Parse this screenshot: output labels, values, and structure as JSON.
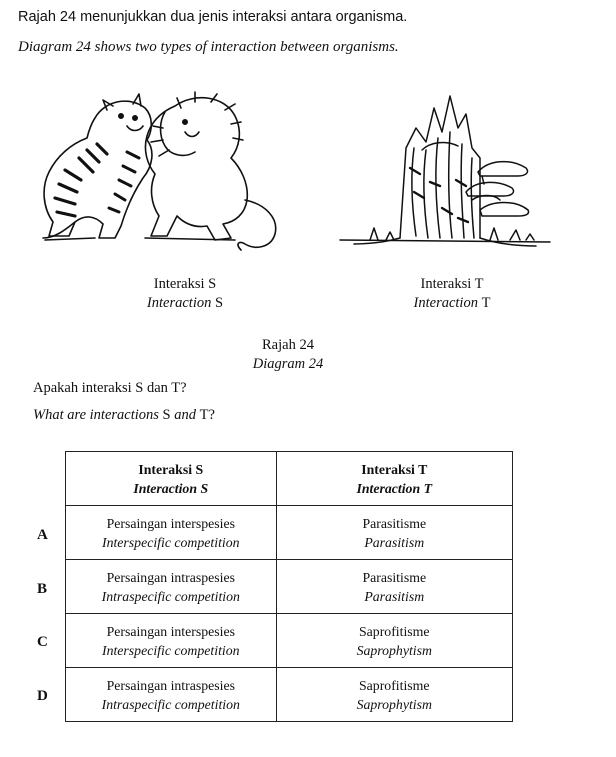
{
  "question": {
    "malay": "Rajah 24 menunjukkan dua jenis interaksi antara organisma.",
    "english": "Diagram 24 shows two types of interaction between organisms."
  },
  "figures": {
    "left": {
      "label_ms": "Interaksi S",
      "label_en_word": "Interaction",
      "label_en_letter": "S",
      "image_icon": "tiger-and-lion-fighting-illustration"
    },
    "right": {
      "label_ms": "Interaksi T",
      "label_en_word": "Interaction",
      "label_en_letter": "T",
      "image_icon": "tree-stump-with-bracket-fungi-illustration"
    }
  },
  "diagram_caption": {
    "malay": "Rajah 24",
    "english": "Diagram 24"
  },
  "ask": {
    "malay": "Apakah interaksi S dan T?",
    "english_pre": "What are interactions",
    "english_s": "S",
    "english_and": "and",
    "english_t": "T?"
  },
  "table": {
    "headers": [
      {
        "ms": "Interaksi S",
        "en": "Interaction S"
      },
      {
        "ms": "Interaksi T",
        "en": "Interaction T"
      }
    ],
    "rows": [
      {
        "letter": "A",
        "s_ms": "Persaingan interspesies",
        "s_en": "Interspecific competition",
        "t_ms": "Parasitisme",
        "t_en": "Parasitism"
      },
      {
        "letter": "B",
        "s_ms": "Persaingan intraspesies",
        "s_en": "Intraspecific competition",
        "t_ms": "Parasitisme",
        "t_en": "Parasitism"
      },
      {
        "letter": "C",
        "s_ms": "Persaingan interspesies",
        "s_en": "Interspecific competition",
        "t_ms": "Saprofitisme",
        "t_en": "Saprophytism"
      },
      {
        "letter": "D",
        "s_ms": "Persaingan intraspesies",
        "s_en": "Intraspecific competition",
        "t_ms": "Saprofitisme",
        "t_en": "Saprophytism"
      }
    ]
  }
}
